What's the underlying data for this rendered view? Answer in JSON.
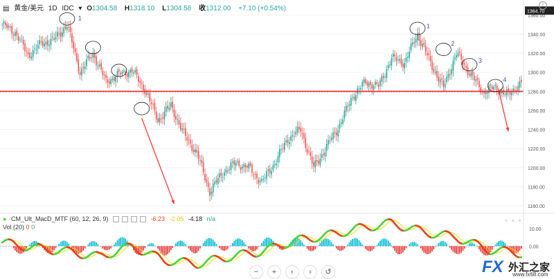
{
  "header": {
    "symbol": "黄金/美元",
    "interval": "1D",
    "source": "IDC",
    "open_label": "O",
    "open": "1304.58",
    "high_label": "H",
    "high": "1318.10",
    "low_label": "L",
    "low": "1304.58",
    "close_label": "收",
    "close": "1312.00",
    "change": "+7.10 (+0.54%)"
  },
  "indicator": {
    "name": "CM_Ult_MacD_MTF (60, 12, 26, 9)",
    "v1": "-6.23",
    "v2": "-2.05",
    "v3": "-4.18",
    "v4": "n/a",
    "vol_name": "Vol (20)",
    "vol_v1": "0",
    "vol_v2": "0"
  },
  "toolbar": {
    "minus": "−",
    "plus": "+",
    "left": "‹",
    "right": "›",
    "reset": "↺"
  },
  "price_tag": "1364.70",
  "annotations": {
    "left_1": "1",
    "right_1": "1",
    "right_2": "2",
    "right_3": "3",
    "right_4": "4"
  },
  "logo": {
    "fx": "FX",
    "cn": "外汇之家",
    "url": "www.fx68.com"
  },
  "colors": {
    "up": "#26a69a",
    "down": "#ef5350",
    "annotation": "#ff2b2b",
    "macd_fast_up": "#4cd137",
    "macd_fast_down": "#e84118",
    "signal": "#f0e000"
  },
  "chart_data": {
    "type": "candlestick",
    "y_axis": {
      "min": 1155,
      "max": 1370,
      "ticks": [
        1360,
        1340,
        1320,
        1300,
        1280,
        1260,
        1240,
        1220,
        1200,
        1180,
        1160
      ]
    },
    "support_level": 1280,
    "close_keys": [
      [
        0,
        1350
      ],
      [
        8,
        1342
      ],
      [
        16,
        1318
      ],
      [
        24,
        1330
      ],
      [
        32,
        1334
      ],
      [
        40,
        1350
      ],
      [
        48,
        1300
      ],
      [
        56,
        1320
      ],
      [
        64,
        1290
      ],
      [
        72,
        1298
      ],
      [
        80,
        1302
      ],
      [
        88,
        1282
      ],
      [
        96,
        1250
      ],
      [
        104,
        1265
      ],
      [
        112,
        1235
      ],
      [
        120,
        1215
      ],
      [
        128,
        1175
      ],
      [
        136,
        1195
      ],
      [
        144,
        1205
      ],
      [
        152,
        1200
      ],
      [
        160,
        1185
      ],
      [
        168,
        1205
      ],
      [
        176,
        1230
      ],
      [
        184,
        1240
      ],
      [
        192,
        1200
      ],
      [
        200,
        1222
      ],
      [
        208,
        1245
      ],
      [
        216,
        1275
      ],
      [
        224,
        1290
      ],
      [
        232,
        1285
      ],
      [
        240,
        1315
      ],
      [
        248,
        1310
      ],
      [
        256,
        1340
      ],
      [
        264,
        1310
      ],
      [
        272,
        1284
      ],
      [
        280,
        1320
      ],
      [
        288,
        1300
      ],
      [
        296,
        1280
      ],
      [
        304,
        1284
      ],
      [
        312,
        1276
      ],
      [
        320,
        1290
      ]
    ],
    "macd_keys": [
      [
        0,
        2
      ],
      [
        20,
        -1
      ],
      [
        40,
        -3
      ],
      [
        60,
        -6
      ],
      [
        80,
        0
      ],
      [
        100,
        -8
      ],
      [
        120,
        -10
      ],
      [
        140,
        -6
      ],
      [
        160,
        -3
      ],
      [
        180,
        3
      ],
      [
        200,
        6
      ],
      [
        220,
        10
      ],
      [
        240,
        13
      ],
      [
        260,
        8
      ],
      [
        280,
        5
      ],
      [
        300,
        -2
      ],
      [
        320,
        -4
      ]
    ],
    "macd_ylim": [
      -10,
      15
    ],
    "macd_ticks": [
      "10.00",
      "0.00"
    ]
  }
}
